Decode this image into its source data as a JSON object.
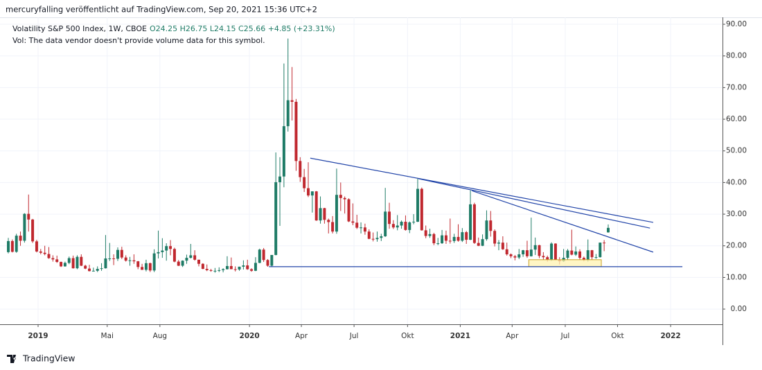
{
  "chart_data": {
    "type": "candlestick",
    "title": "mercuryfalling veröffentlicht auf TradingView.com, Sep 20, 2021 15:36 UTC+2",
    "legend_symbol": "Volatility S&P 500 Index, 1W, CBOE",
    "legend_ohlc": "O24.25 H26.75 L24.15 C25.66 +4.85 (+23.31%)",
    "volume_note": "Vol: The data vendor doesn't provide volume data for this symbol.",
    "brand": "TradingView",
    "up_color": "#1e7b66",
    "down_color": "#c0282f",
    "line_color": "#2144a8",
    "zone_color": "#fff3b0",
    "grid": true,
    "xlim": [
      -0.34,
      176.2
    ],
    "ylim": [
      -4.8,
      92.2
    ],
    "xticks": [
      {
        "value": 7.35,
        "label": "2019"
      },
      {
        "value": 24.4,
        "label": "Mai"
      },
      {
        "value": 37.4,
        "label": "Aug"
      },
      {
        "value": 59.5,
        "label": "2020"
      },
      {
        "value": 72.3,
        "label": "Apr"
      },
      {
        "value": 85.3,
        "label": "Jul"
      },
      {
        "value": 98.5,
        "label": "Okt"
      },
      {
        "value": 111.5,
        "label": "2021"
      },
      {
        "value": 124.3,
        "label": "Apr"
      },
      {
        "value": 137.4,
        "label": "Jul"
      },
      {
        "value": 150.3,
        "label": "Okt"
      },
      {
        "value": 163.4,
        "label": "2022"
      }
    ],
    "yticks": [
      {
        "value": 0,
        "label": "0.00"
      },
      {
        "value": 10,
        "label": "10.00"
      },
      {
        "value": 20,
        "label": "20.00"
      },
      {
        "value": 30,
        "label": "30.00"
      },
      {
        "value": 40,
        "label": "40.00"
      },
      {
        "value": 50,
        "label": "50.00"
      },
      {
        "value": 60,
        "label": "60.00"
      },
      {
        "value": 70,
        "label": "70.00"
      },
      {
        "value": 80,
        "label": "80.00"
      },
      {
        "value": 90,
        "label": "90.00"
      }
    ],
    "ohlc": [
      [
        18.0,
        22.5,
        17.6,
        21.5
      ],
      [
        21.5,
        22.0,
        17.9,
        18.1
      ],
      [
        18.1,
        23.8,
        17.8,
        23.2
      ],
      [
        23.2,
        24.5,
        20.0,
        21.6
      ],
      [
        21.6,
        30.3,
        21.0,
        30.1
      ],
      [
        30.1,
        36.2,
        24.5,
        28.3
      ],
      [
        28.3,
        28.5,
        20.9,
        21.4
      ],
      [
        21.4,
        21.9,
        17.9,
        18.2
      ],
      [
        18.2,
        19.0,
        17.3,
        17.8
      ],
      [
        17.8,
        20.0,
        17.0,
        17.4
      ],
      [
        17.4,
        19.6,
        15.9,
        16.1
      ],
      [
        16.1,
        17.0,
        15.0,
        15.7
      ],
      [
        15.7,
        16.9,
        14.6,
        14.9
      ],
      [
        14.9,
        15.0,
        13.3,
        13.5
      ],
      [
        13.5,
        15.0,
        13.4,
        14.6
      ],
      [
        14.6,
        16.6,
        14.2,
        16.1
      ],
      [
        16.1,
        16.9,
        12.8,
        12.9
      ],
      [
        12.9,
        17.0,
        12.6,
        16.5
      ],
      [
        16.5,
        17.3,
        13.6,
        13.7
      ],
      [
        13.7,
        14.0,
        12.6,
        12.8
      ],
      [
        12.8,
        14.0,
        11.9,
        12.0
      ],
      [
        12.0,
        13.1,
        11.9,
        12.1
      ],
      [
        12.1,
        13.5,
        11.7,
        12.7
      ],
      [
        12.7,
        14.5,
        12.1,
        12.9
      ],
      [
        12.9,
        23.4,
        12.8,
        16.0
      ],
      [
        16.0,
        20.9,
        15.2,
        16.0
      ],
      [
        16.0,
        17.3,
        13.9,
        15.9
      ],
      [
        15.9,
        19.5,
        15.2,
        18.7
      ],
      [
        18.7,
        19.7,
        15.8,
        16.3
      ],
      [
        16.3,
        17.0,
        15.0,
        15.3
      ],
      [
        15.3,
        16.5,
        13.7,
        15.4
      ],
      [
        15.4,
        17.3,
        14.3,
        15.1
      ],
      [
        15.1,
        15.2,
        12.6,
        13.3
      ],
      [
        13.3,
        14.3,
        12.4,
        12.4
      ],
      [
        12.4,
        15.6,
        11.9,
        14.5
      ],
      [
        14.5,
        14.7,
        11.7,
        12.2
      ],
      [
        12.2,
        18.9,
        11.7,
        17.6
      ],
      [
        17.6,
        24.8,
        16.0,
        18.0
      ],
      [
        18.0,
        22.4,
        16.2,
        18.5
      ],
      [
        18.5,
        20.8,
        15.3,
        19.9
      ],
      [
        19.9,
        21.8,
        17.0,
        19.0
      ],
      [
        19.0,
        19.4,
        14.8,
        15.0
      ],
      [
        15.0,
        15.5,
        13.6,
        13.7
      ],
      [
        13.7,
        15.4,
        13.3,
        15.3
      ],
      [
        15.3,
        17.2,
        14.3,
        16.2
      ],
      [
        16.2,
        20.6,
        16.0,
        17.0
      ],
      [
        17.0,
        18.6,
        15.3,
        15.6
      ],
      [
        15.6,
        15.6,
        13.5,
        14.3
      ],
      [
        14.3,
        14.5,
        12.6,
        12.7
      ],
      [
        12.7,
        14.1,
        12.0,
        12.3
      ],
      [
        12.3,
        12.7,
        11.8,
        12.1
      ],
      [
        12.1,
        13.0,
        11.5,
        12.1
      ],
      [
        12.1,
        13.2,
        11.7,
        12.3
      ],
      [
        12.3,
        12.9,
        11.6,
        12.6
      ],
      [
        12.6,
        16.7,
        12.5,
        13.6
      ],
      [
        13.6,
        16.3,
        12.6,
        12.6
      ],
      [
        12.6,
        13.5,
        11.9,
        12.5
      ],
      [
        12.5,
        13.4,
        12.1,
        13.4
      ],
      [
        13.4,
        15.4,
        12.5,
        13.8
      ],
      [
        13.8,
        15.6,
        12.4,
        12.6
      ],
      [
        12.6,
        12.9,
        11.8,
        12.1
      ],
      [
        12.1,
        16.4,
        12.0,
        14.6
      ],
      [
        14.6,
        19.1,
        14.5,
        18.8
      ],
      [
        18.8,
        19.3,
        14.9,
        15.5
      ],
      [
        15.5,
        15.8,
        13.4,
        13.7
      ],
      [
        13.7,
        17.1,
        13.5,
        17.1
      ],
      [
        17.1,
        49.5,
        17.0,
        40.1
      ],
      [
        40.1,
        48.0,
        26.3,
        41.9
      ],
      [
        41.9,
        77.6,
        38.5,
        57.8
      ],
      [
        57.8,
        85.5,
        56.1,
        66.0
      ],
      [
        66.0,
        76.5,
        59.6,
        65.5
      ],
      [
        65.5,
        66.4,
        43.7,
        46.8
      ],
      [
        46.8,
        48.0,
        40.2,
        41.7
      ],
      [
        41.7,
        44.3,
        37.0,
        38.2
      ],
      [
        38.2,
        46.4,
        35.4,
        35.9
      ],
      [
        35.9,
        37.2,
        30.5,
        37.2
      ],
      [
        37.2,
        37.3,
        27.9,
        28.0
      ],
      [
        28.0,
        35.6,
        27.0,
        31.9
      ],
      [
        31.9,
        32.0,
        27.0,
        28.2
      ],
      [
        28.2,
        28.6,
        23.9,
        27.5
      ],
      [
        27.5,
        29.4,
        23.9,
        24.5
      ],
      [
        24.5,
        44.4,
        23.8,
        36.1
      ],
      [
        36.1,
        40.0,
        31.0,
        35.1
      ],
      [
        35.1,
        35.6,
        30.2,
        34.7
      ],
      [
        34.7,
        35.0,
        27.5,
        27.7
      ],
      [
        27.7,
        33.4,
        26.5,
        27.3
      ],
      [
        27.3,
        29.8,
        25.3,
        25.7
      ],
      [
        25.7,
        27.4,
        23.9,
        25.8
      ],
      [
        25.8,
        27.0,
        23.5,
        24.5
      ],
      [
        24.5,
        25.2,
        22.1,
        22.2
      ],
      [
        22.2,
        24.2,
        21.4,
        22.1
      ],
      [
        22.1,
        24.5,
        21.3,
        22.5
      ],
      [
        22.5,
        23.8,
        21.5,
        23.0
      ],
      [
        23.0,
        38.3,
        22.8,
        30.8
      ],
      [
        30.8,
        33.6,
        25.4,
        26.9
      ],
      [
        26.9,
        28.1,
        25.3,
        25.8
      ],
      [
        25.8,
        29.7,
        24.9,
        26.4
      ],
      [
        26.4,
        28.0,
        25.4,
        27.6
      ],
      [
        27.6,
        29.6,
        24.8,
        25.0
      ],
      [
        25.0,
        27.7,
        24.0,
        27.4
      ],
      [
        27.4,
        30.0,
        26.8,
        27.6
      ],
      [
        27.6,
        41.2,
        27.5,
        38.0
      ],
      [
        38.0,
        38.4,
        24.8,
        24.9
      ],
      [
        24.9,
        26.4,
        22.4,
        23.1
      ],
      [
        23.1,
        25.4,
        22.5,
        23.7
      ],
      [
        23.7,
        24.1,
        20.2,
        20.8
      ],
      [
        20.8,
        22.5,
        20.2,
        20.8
      ],
      [
        20.8,
        25.0,
        20.6,
        23.3
      ],
      [
        23.3,
        24.8,
        20.6,
        21.6
      ],
      [
        21.6,
        28.6,
        20.7,
        21.5
      ],
      [
        21.5,
        23.8,
        20.9,
        22.8
      ],
      [
        22.8,
        26.8,
        21.3,
        21.6
      ],
      [
        21.6,
        25.6,
        21.2,
        24.3
      ],
      [
        24.3,
        24.7,
        20.6,
        21.9
      ],
      [
        21.9,
        37.5,
        21.8,
        33.1
      ],
      [
        33.1,
        33.6,
        20.6,
        20.9
      ],
      [
        20.9,
        22.6,
        19.9,
        20.0
      ],
      [
        20.0,
        23.6,
        19.9,
        22.1
      ],
      [
        22.1,
        31.2,
        21.6,
        28.0
      ],
      [
        28.0,
        31.0,
        22.9,
        24.7
      ],
      [
        24.7,
        25.2,
        19.8,
        20.7
      ],
      [
        20.7,
        21.8,
        18.6,
        21.0
      ],
      [
        21.0,
        23.0,
        18.7,
        18.9
      ],
      [
        18.9,
        21.0,
        16.9,
        17.3
      ],
      [
        17.3,
        17.6,
        16.1,
        16.7
      ],
      [
        16.7,
        17.1,
        15.4,
        16.3
      ],
      [
        16.3,
        19.0,
        15.8,
        17.3
      ],
      [
        17.3,
        18.7,
        16.5,
        18.6
      ],
      [
        18.6,
        21.6,
        16.2,
        16.7
      ],
      [
        16.7,
        28.9,
        16.6,
        18.8
      ],
      [
        18.8,
        22.6,
        17.1,
        20.2
      ],
      [
        20.2,
        20.3,
        16.1,
        16.8
      ],
      [
        16.8,
        18.0,
        15.6,
        16.4
      ],
      [
        16.4,
        16.9,
        15.0,
        15.7
      ],
      [
        15.7,
        21.1,
        15.2,
        20.7
      ],
      [
        20.7,
        20.8,
        15.5,
        15.6
      ],
      [
        15.6,
        16.4,
        14.1,
        15.1
      ],
      [
        15.1,
        19.0,
        14.9,
        16.2
      ],
      [
        16.2,
        19.0,
        15.5,
        18.5
      ],
      [
        18.5,
        25.1,
        17.0,
        17.2
      ],
      [
        17.2,
        19.8,
        16.8,
        18.2
      ],
      [
        18.2,
        18.9,
        15.7,
        16.2
      ],
      [
        16.2,
        16.6,
        15.1,
        15.5
      ],
      [
        15.5,
        22.0,
        15.0,
        18.6
      ],
      [
        18.6,
        18.7,
        15.5,
        16.4
      ],
      [
        16.4,
        17.4,
        15.9,
        16.4
      ],
      [
        16.4,
        21.0,
        16.3,
        21.0
      ],
      [
        21.0,
        21.8,
        18.3,
        20.8
      ],
      [
        24.25,
        26.75,
        24.15,
        25.66
      ]
    ],
    "trendlines": [
      {
        "x": [
          74.5,
          159.1
        ],
        "y": [
          47.7,
          27.4
        ]
      },
      {
        "x": [
          101.2,
          158.3
        ],
        "y": [
          41.2,
          25.6
        ]
      },
      {
        "x": [
          114.4,
          159.1
        ],
        "y": [
          37.4,
          18.0
        ]
      },
      {
        "x": [
          64.3,
          166.3
        ],
        "y": [
          13.4,
          13.4
        ]
      }
    ],
    "zone": {
      "x": [
        128.4,
        146.3
      ],
      "y": [
        13.4,
        15.6
      ]
    }
  }
}
